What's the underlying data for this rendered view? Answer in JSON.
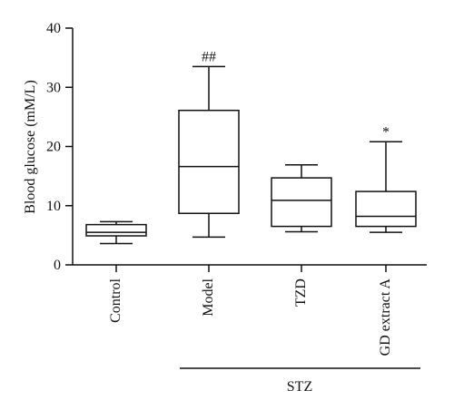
{
  "chart_data": {
    "type": "box",
    "title": "",
    "xlabel": "",
    "ylabel": "Blood glucose (mM/L)",
    "ylim": [
      0,
      40
    ],
    "yticks": [
      0,
      10,
      20,
      30,
      40
    ],
    "categories": [
      "Control",
      "Model",
      "TZD",
      "GD extract A"
    ],
    "boxes": [
      {
        "category": "Control",
        "min": 3.6,
        "q1": 4.9,
        "median": 5.5,
        "q3": 6.8,
        "max": 7.3,
        "annotation": ""
      },
      {
        "category": "Model",
        "min": 4.7,
        "q1": 8.7,
        "median": 16.6,
        "q3": 26.1,
        "max": 33.5,
        "annotation": "##"
      },
      {
        "category": "TZD",
        "min": 5.6,
        "q1": 6.5,
        "median": 10.9,
        "q3": 14.7,
        "max": 16.9,
        "annotation": ""
      },
      {
        "category": "GD extract A",
        "min": 5.5,
        "q1": 6.5,
        "median": 8.2,
        "q3": 12.4,
        "max": 20.8,
        "annotation": "*"
      }
    ],
    "group_label": {
      "text": "STZ",
      "covers": [
        "Model",
        "TZD",
        "GD extract A"
      ]
    },
    "grid": false,
    "legend": "none"
  }
}
